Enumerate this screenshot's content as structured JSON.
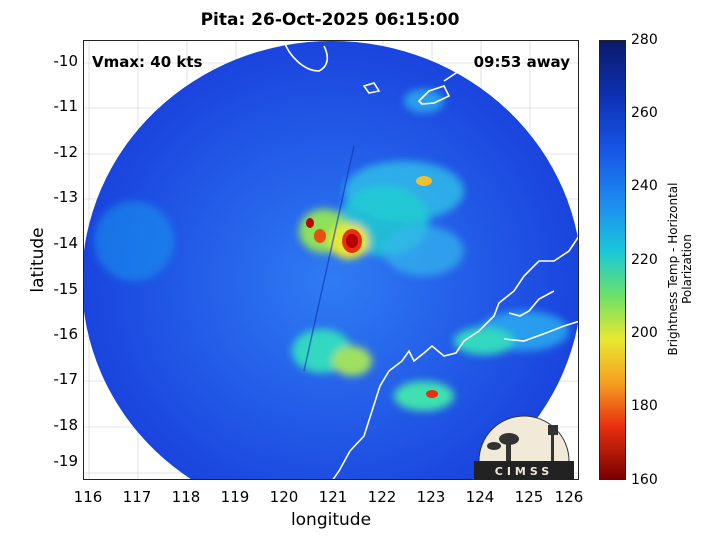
{
  "title": "Pita: 26-Oct-2025 06:15:00",
  "vmax_label": "Vmax: 40 kts",
  "away_label": "09:53 away",
  "x_axis_title": "longitude",
  "y_axis_title": "latitude",
  "x_ticks": [
    "116",
    "117",
    "118",
    "119",
    "120",
    "121",
    "122",
    "123",
    "124",
    "125",
    "126"
  ],
  "y_ticks": [
    "-10",
    "-11",
    "-12",
    "-13",
    "-14",
    "-15",
    "-16",
    "-17",
    "-18",
    "-19"
  ],
  "colorbar": {
    "title": "Brightness Temp - Horizontal Polarization",
    "ticks": [
      "280",
      "260",
      "240",
      "220",
      "200",
      "180",
      "160"
    ]
  },
  "logo_text": "CIMSS",
  "colors": {
    "disk_base": "#1a4be8",
    "coast": "#ffffff",
    "hot": "#b40000"
  }
}
